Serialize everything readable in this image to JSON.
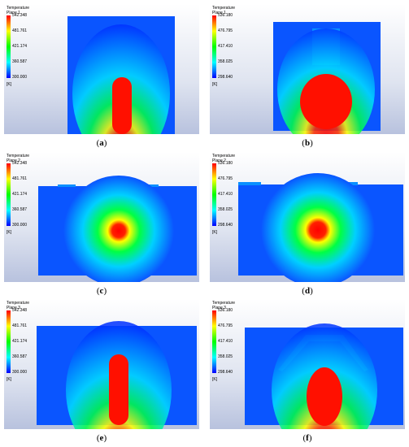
{
  "panels": [
    {
      "id": "a",
      "caption": "a",
      "title": "Temperature",
      "plane": "Plane 1",
      "ticks": [
        "542.348",
        "481.761",
        "421.174",
        "360.587",
        "300.000"
      ],
      "unit": "[K]"
    },
    {
      "id": "b",
      "caption": "b",
      "title": "Temperature",
      "plane": "Plane 1",
      "ticks": [
        "536.180",
        "476.795",
        "417.410",
        "358.025",
        "298.640"
      ],
      "unit": "[K]"
    },
    {
      "id": "c",
      "caption": "c",
      "title": "Temperature",
      "plane": "Plane 2",
      "ticks": [
        "542.348",
        "481.761",
        "421.174",
        "360.587",
        "300.000"
      ],
      "unit": "[K]"
    },
    {
      "id": "d",
      "caption": "d",
      "title": "Temperature",
      "plane": "Plane 2",
      "ticks": [
        "536.180",
        "476.795",
        "417.410",
        "358.025",
        "298.640"
      ],
      "unit": "[K]"
    },
    {
      "id": "e",
      "caption": "e",
      "title": "Temperature",
      "plane": "Plane 3",
      "ticks": [
        "542.348",
        "481.761",
        "421.174",
        "360.587",
        "300.000"
      ],
      "unit": "[K]"
    },
    {
      "id": "f",
      "caption": "f",
      "title": "Temperature",
      "plane": "Plane 3",
      "ticks": [
        "536.180",
        "476.795",
        "417.410",
        "358.025",
        "298.640"
      ],
      "unit": "[K]"
    }
  ],
  "colors": {
    "hot": "#ff0000",
    "warm": "#ffff00",
    "mid": "#00ff00",
    "cool": "#00ffff",
    "cold": "#0000ff"
  }
}
